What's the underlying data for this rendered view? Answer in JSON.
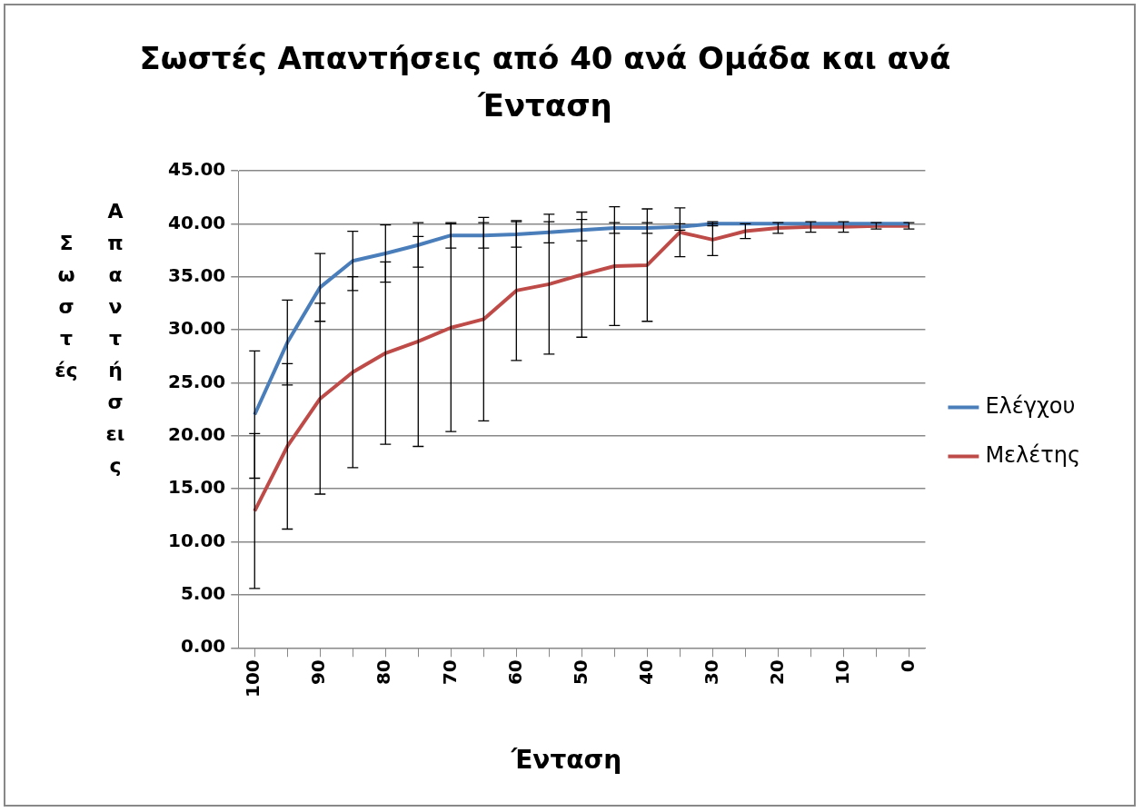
{
  "chart_data": {
    "type": "line",
    "title": "Σωστές Απαντήσεις από 40 ανά Ομάδα και ανά Ένταση",
    "xlabel": "Ένταση",
    "ylabel": "Σωστές Απαντήσεις",
    "categories": [
      "100",
      null,
      "90",
      null,
      "80",
      null,
      "70",
      null,
      "60",
      null,
      "50",
      null,
      "40",
      null,
      "30",
      null,
      "20",
      null,
      "10",
      null,
      "0"
    ],
    "series": [
      {
        "name": "Ελέγχου",
        "color": "#4a7ebb",
        "values": [
          22.0,
          28.8,
          34.0,
          36.5,
          37.2,
          38.0,
          38.9,
          38.9,
          39.0,
          39.2,
          39.4,
          39.6,
          39.6,
          39.7,
          40.0,
          40.0,
          40.0,
          40.0,
          40.0,
          40.0,
          40.0
        ],
        "errors": [
          6.0,
          4.0,
          3.2,
          2.8,
          2.7,
          2.1,
          1.2,
          1.2,
          1.2,
          1.0,
          1.0,
          0.5,
          0.5,
          0.3,
          0.2,
          null,
          null,
          null,
          null,
          null,
          null
        ]
      },
      {
        "name": "Μελέτης",
        "color": "#be4b48",
        "values": [
          12.9,
          19.0,
          23.5,
          26.0,
          27.8,
          28.9,
          30.2,
          31.0,
          33.7,
          34.3,
          35.2,
          36.0,
          36.1,
          39.2,
          38.5,
          39.3,
          39.6,
          39.7,
          39.7,
          39.8,
          39.8
        ],
        "errors": [
          7.3,
          7.8,
          9.0,
          9.0,
          8.6,
          9.9,
          9.8,
          9.6,
          6.6,
          6.6,
          5.9,
          5.6,
          5.3,
          2.3,
          1.5,
          0.7,
          0.5,
          0.5,
          0.5,
          0.3,
          0.3
        ]
      }
    ],
    "ylim": [
      0,
      45
    ],
    "yticks": [
      {
        "value": 0,
        "label": "0.00"
      },
      {
        "value": 5,
        "label": "5.00"
      },
      {
        "value": 10,
        "label": "10.00"
      },
      {
        "value": 15,
        "label": "15.00"
      },
      {
        "value": 20,
        "label": "20.00"
      },
      {
        "value": 25,
        "label": "25.00"
      },
      {
        "value": 30,
        "label": "30.00"
      },
      {
        "value": 35,
        "label": "35.00"
      },
      {
        "value": 40,
        "label": "40.00"
      },
      {
        "value": 45,
        "label": "45.00"
      }
    ],
    "grid": "y",
    "legend": "right",
    "marker": "none",
    "line_style": "solid"
  }
}
